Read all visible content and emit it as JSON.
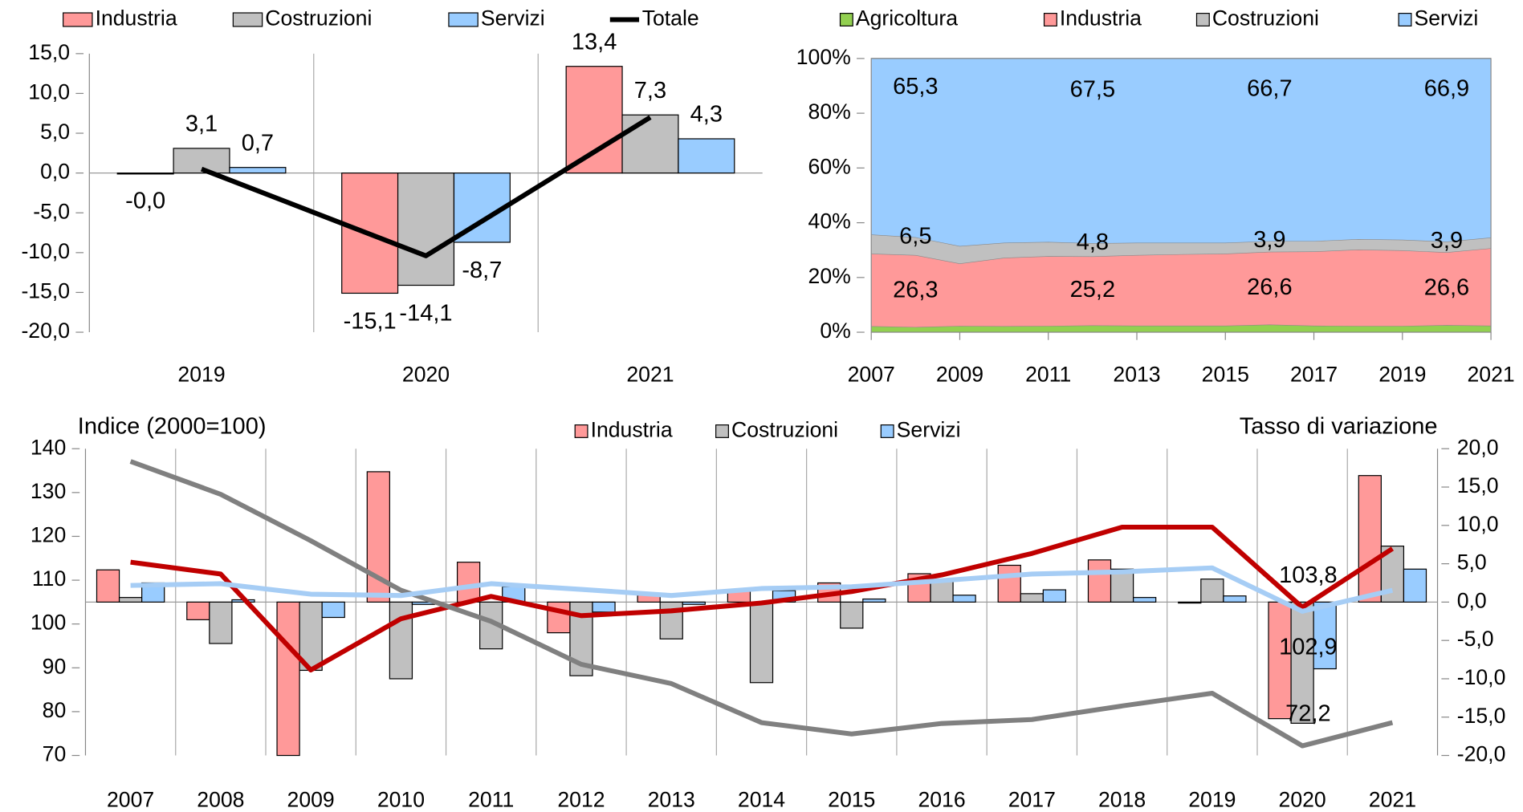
{
  "chart_data": [
    {
      "type": "bar",
      "categories": [
        "2019",
        "2020",
        "2021"
      ],
      "series": [
        {
          "name": "Industria",
          "color": "#ff9999",
          "values": [
            -0.0,
            -15.1,
            13.4
          ],
          "value_labels": [
            "-0,0",
            "-15,1",
            "13,4"
          ]
        },
        {
          "name": "Costruzioni",
          "color": "#c0c0c0",
          "values": [
            3.1,
            -14.1,
            7.3
          ],
          "value_labels": [
            "3,1",
            "-14,1",
            "7,3"
          ]
        },
        {
          "name": "Servizi",
          "color": "#99ccff",
          "values": [
            0.7,
            -8.7,
            4.3
          ],
          "value_labels": [
            "0,7",
            "-8,7",
            "4,3"
          ]
        },
        {
          "name": "Totale",
          "type": "line",
          "color": "#000000",
          "values": [
            0.5,
            -10.4,
            7.0
          ]
        }
      ],
      "label_color": "#000000",
      "negative_label_color": "#ff0000",
      "ylim": [
        -20,
        15
      ],
      "yticks": [
        {
          "value": -20,
          "label": "-20,0"
        },
        {
          "value": -15,
          "label": "-15,0"
        },
        {
          "value": -10,
          "label": "-10,0"
        },
        {
          "value": -5,
          "label": "-5,0"
        },
        {
          "value": 0,
          "label": "0,0"
        },
        {
          "value": 5,
          "label": "5,0"
        },
        {
          "value": 10,
          "label": "10,0"
        },
        {
          "value": 15,
          "label": "15,0"
        }
      ]
    },
    {
      "type": "stacked_area",
      "x": [
        2007,
        2008,
        2009,
        2010,
        2011,
        2012,
        2013,
        2014,
        2015,
        2016,
        2017,
        2018,
        2019,
        2020,
        2021
      ],
      "series": [
        {
          "name": "Agricoltura",
          "color": "#92d050",
          "values": [
            2.2,
            1.9,
            2.3,
            2.2,
            2.3,
            2.5,
            2.4,
            2.4,
            2.4,
            2.8,
            2.4,
            2.3,
            2.3,
            2.6,
            2.4
          ]
        },
        {
          "name": "Industria",
          "color": "#ff9999",
          "label_color": "#ff0000",
          "values": [
            26.5,
            26.3,
            22.8,
            25.0,
            25.5,
            25.2,
            25.8,
            26.1,
            26.3,
            26.6,
            27.1,
            27.9,
            27.6,
            26.6,
            28.3
          ],
          "value_labels": [
            null,
            "26,3",
            null,
            null,
            null,
            "25,2",
            null,
            null,
            null,
            "26,6",
            null,
            null,
            null,
            "26,6",
            null
          ]
        },
        {
          "name": "Costruzioni",
          "color": "#c0c0c0",
          "label_color": "#000000",
          "values": [
            7.0,
            6.5,
            6.4,
            5.5,
            5.2,
            4.8,
            4.5,
            4.2,
            4.0,
            3.9,
            3.8,
            3.8,
            3.9,
            3.9,
            3.9
          ],
          "value_labels": [
            null,
            "6,5",
            null,
            null,
            null,
            "4,8",
            null,
            null,
            null,
            "3,9",
            null,
            null,
            null,
            "3,9",
            null
          ]
        },
        {
          "name": "Servizi",
          "color": "#99ccff",
          "label_color": "#0070c0",
          "values": [
            64.3,
            65.3,
            68.5,
            67.3,
            67.0,
            67.5,
            67.3,
            67.3,
            67.3,
            66.7,
            66.7,
            66.0,
            66.2,
            66.9,
            65.4
          ],
          "value_labels": [
            null,
            "65,3",
            null,
            null,
            null,
            "67,5",
            null,
            null,
            null,
            "66,7",
            null,
            null,
            null,
            "66,9",
            null
          ]
        }
      ],
      "xlim": [
        2007,
        2021
      ],
      "xticks": [
        2007,
        2009,
        2011,
        2013,
        2015,
        2017,
        2019,
        2021
      ],
      "ylim": [
        0,
        100
      ],
      "yticks": [
        {
          "value": 0,
          "label": "0%"
        },
        {
          "value": 20,
          "label": "20%"
        },
        {
          "value": 40,
          "label": "40%"
        },
        {
          "value": 60,
          "label": "60%"
        },
        {
          "value": 80,
          "label": "80%"
        },
        {
          "value": 100,
          "label": "100%"
        }
      ]
    },
    {
      "type": "bar",
      "ylabel": "Indice (2000=100)",
      "y2label": "Tasso di variazione",
      "categories": [
        "2007",
        "2008",
        "2009",
        "2010",
        "2011",
        "2012",
        "2013",
        "2014",
        "2015",
        "2016",
        "2017",
        "2018",
        "2019",
        "2020",
        "2021"
      ],
      "series": [
        {
          "name": "Industria",
          "axis": "y2",
          "color": "#ff9999",
          "values": [
            4.2,
            -2.3,
            -20.0,
            17.0,
            5.2,
            -4.0,
            0.9,
            1.5,
            2.5,
            3.7,
            4.8,
            5.5,
            0.0,
            -15.2,
            16.5
          ]
        },
        {
          "name": "Costruzioni",
          "axis": "y2",
          "color": "#c0c0c0",
          "values": [
            0.6,
            -5.4,
            -8.9,
            -10.0,
            -6.1,
            -9.6,
            -4.8,
            -10.5,
            -3.4,
            2.9,
            1.1,
            4.3,
            3.0,
            -15.8,
            7.3
          ]
        },
        {
          "name": "Servizi",
          "axis": "y2",
          "color": "#99ccff",
          "values": [
            2.5,
            0.3,
            -2.0,
            -0.3,
            2.0,
            -1.3,
            -0.3,
            1.5,
            0.4,
            0.9,
            1.6,
            0.6,
            0.8,
            -8.7,
            4.3
          ]
        },
        {
          "type": "line",
          "color": "#c00000",
          "label_color": "#ff0000",
          "values": [
            114.1,
            111.4,
            89.5,
            101.2,
            106.3,
            101.9,
            103.0,
            104.8,
            107.4,
            111.2,
            116.1,
            122.1,
            122.1,
            103.8,
            117.2
          ],
          "value_labels": [
            null,
            null,
            null,
            null,
            null,
            null,
            null,
            null,
            null,
            null,
            null,
            null,
            null,
            "103,8",
            null
          ]
        },
        {
          "type": "line",
          "color": "#808080",
          "label_color": "#000000",
          "values": [
            137.1,
            129.6,
            119.0,
            107.7,
            100.6,
            90.8,
            86.4,
            77.5,
            74.9,
            77.3,
            78.2,
            81.3,
            84.2,
            72.2,
            77.5
          ],
          "value_labels": [
            null,
            null,
            null,
            null,
            null,
            null,
            null,
            null,
            null,
            null,
            null,
            null,
            null,
            "72,2",
            null
          ]
        },
        {
          "type": "line",
          "color": "#a6cdf5",
          "label_color": "#0070c0",
          "values": [
            108.8,
            109.2,
            106.8,
            106.5,
            109.2,
            107.9,
            106.5,
            108.1,
            108.5,
            109.9,
            111.4,
            111.9,
            112.8,
            102.9,
            107.7
          ],
          "value_labels": [
            null,
            null,
            null,
            null,
            null,
            null,
            null,
            null,
            null,
            null,
            null,
            null,
            null,
            "102,9",
            null
          ]
        }
      ],
      "ylim": [
        70,
        140
      ],
      "yticks": [
        70,
        80,
        90,
        100,
        110,
        120,
        130,
        140
      ],
      "y2lim": [
        -20,
        20
      ],
      "y2ticks": [
        {
          "value": -20,
          "label": "-20,0"
        },
        {
          "value": -15,
          "label": "-15,0"
        },
        {
          "value": -10,
          "label": "-10,0"
        },
        {
          "value": -5,
          "label": "-5,0"
        },
        {
          "value": 0,
          "label": "0,0"
        },
        {
          "value": 5,
          "label": "5,0"
        },
        {
          "value": 10,
          "label": "10,0"
        },
        {
          "value": 15,
          "label": "15,0"
        },
        {
          "value": 20,
          "label": "20,0"
        }
      ],
      "y2_color": "#ff0000",
      "axis_label_color": "#ff0000"
    }
  ]
}
